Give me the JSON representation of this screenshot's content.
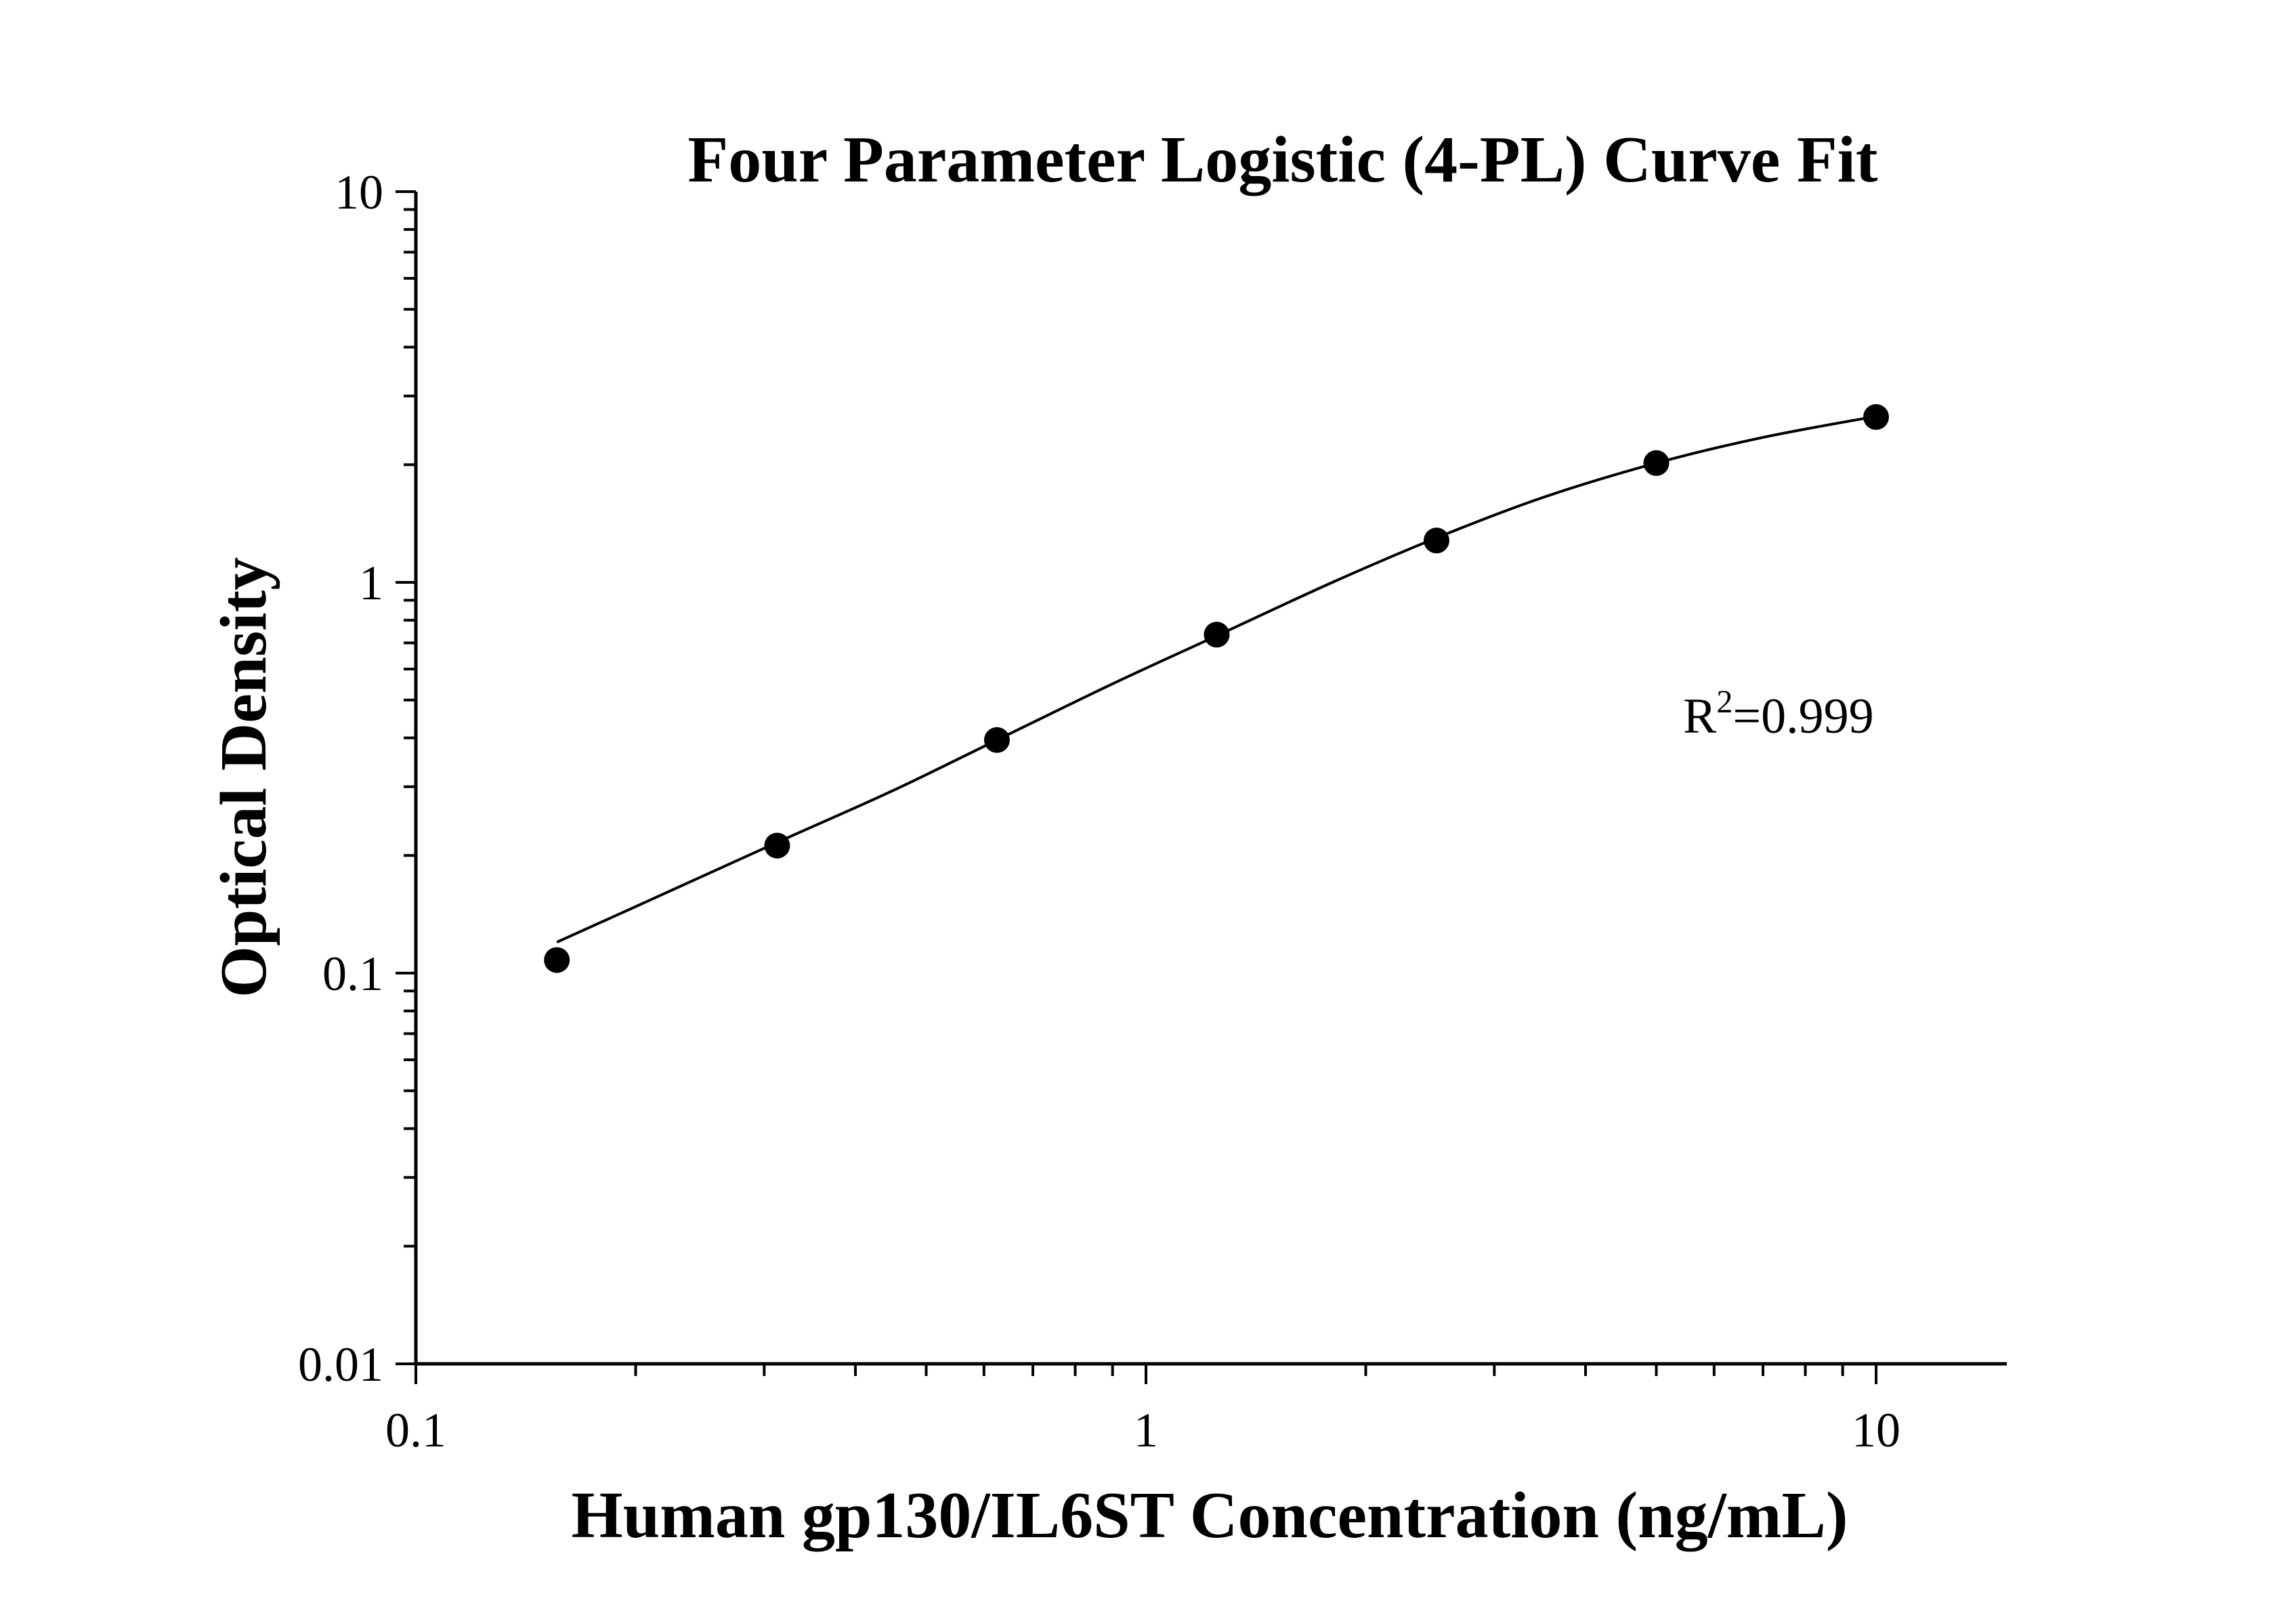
{
  "chart_data": {
    "type": "scatter",
    "title": "Four Parameter Logistic (4-PL) Curve Fit",
    "xlabel": "Human gp130/IL6ST Concentration (ng/mL)",
    "ylabel": "Optical Density",
    "xscale": "log",
    "yscale": "log",
    "xlim": [
      0.1,
      15
    ],
    "ylim": [
      0.01,
      10
    ],
    "x_ticks": [
      "0.1",
      "1",
      "10"
    ],
    "y_ticks": [
      "0.01",
      "0.1",
      "1",
      "10"
    ],
    "grid": false,
    "series": [
      {
        "type": "scatter",
        "x": [
          0.156,
          0.3125,
          0.625,
          1.25,
          2.5,
          5,
          10
        ],
        "y": [
          0.108,
          0.212,
          0.395,
          0.735,
          1.28,
          2.02,
          2.65
        ],
        "color": "#000000"
      },
      {
        "type": "line",
        "curve": "4-PL fit",
        "x": [
          0.156,
          0.2,
          0.3125,
          0.45,
          0.625,
          0.9,
          1.25,
          1.8,
          2.5,
          3.5,
          5,
          7,
          10
        ],
        "y": [
          0.12,
          0.148,
          0.216,
          0.293,
          0.395,
          0.55,
          0.73,
          1.0,
          1.3,
          1.65,
          2.02,
          2.35,
          2.66
        ],
        "color": "#000000"
      }
    ],
    "annotation": {
      "base": "R",
      "sup": "2",
      "rest": "=0.999"
    }
  }
}
